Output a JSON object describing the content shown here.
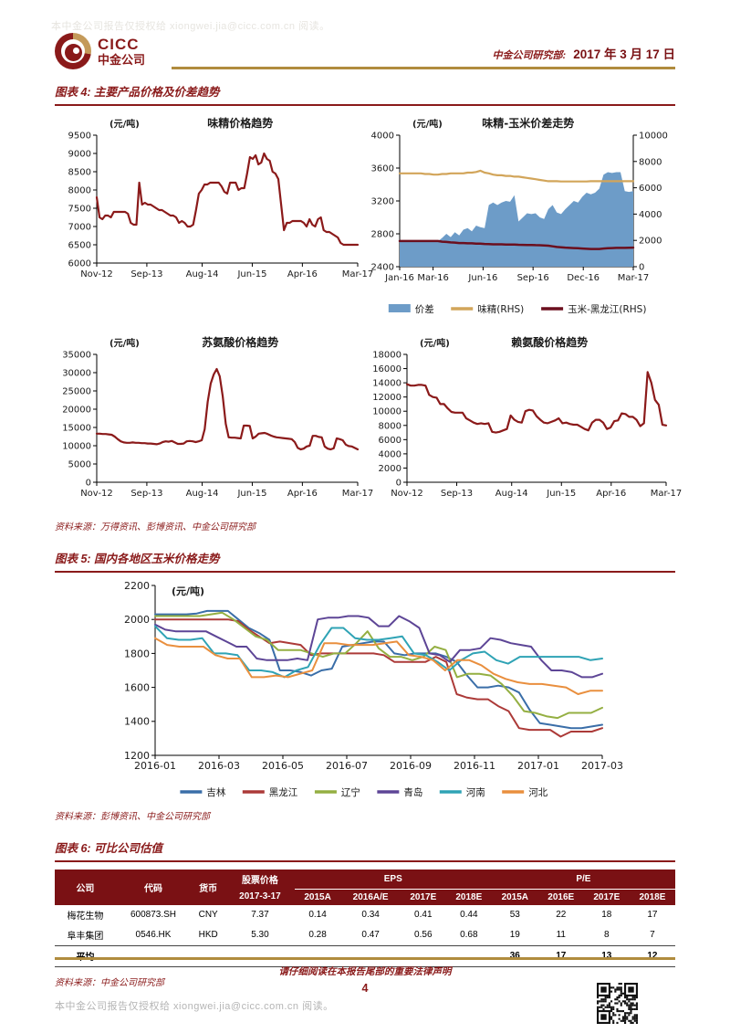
{
  "header": {
    "logo_text": "CICC",
    "logo_subtext": "中金公司",
    "dept": "中金公司研究部:",
    "date": "2017 年 3 月 17 日"
  },
  "watermark": {
    "auth_text": "本中金公司报告仅授权给 xiongwei.jia@cicc.com.cn 阅读。"
  },
  "figures": {
    "fig4": {
      "title": "图表 4: 主要产品价格及价差趋势",
      "source": "资料来源：万得资讯、彭博资讯、中金公司研究部"
    },
    "fig5": {
      "title": "图表 5: 国内各地区玉米价格走势",
      "source": "资料来源：彭博资讯、中金公司研究部"
    },
    "fig6": {
      "title": "图表 6: 可比公司估值",
      "source": "资料来源：中金公司研究部"
    }
  },
  "footer": {
    "legal": "请仔细阅读在本报告尾部的重要法律声明",
    "page_number": "4"
  },
  "chart_data": [
    {
      "id": "msg",
      "type": "line",
      "title": "味精价格趋势",
      "unit": "(元/吨)",
      "ylim": [
        6000,
        9500
      ],
      "ystep": 500,
      "xlabels": [
        "Nov-12",
        "Sep-13",
        "Aug-14",
        "Jun-15",
        "Apr-16",
        "Mar-17"
      ],
      "xfrac": [
        0,
        0.192,
        0.404,
        0.596,
        0.788,
        1
      ],
      "series": [
        {
          "name": "味精价格",
          "color": "#8b1a1a",
          "w": 2.2,
          "values": [
            7800,
            7250,
            7200,
            7300,
            7300,
            7250,
            7400,
            7400,
            7400,
            7400,
            7400,
            7350,
            7100,
            7050,
            7050,
            8200,
            7600,
            7650,
            7600,
            7600,
            7550,
            7500,
            7450,
            7450,
            7400,
            7350,
            7300,
            7300,
            7250,
            7100,
            7150,
            7100,
            7000,
            7000,
            7050,
            7450,
            7900,
            8000,
            8150,
            8150,
            8200,
            8200,
            8200,
            8200,
            8100,
            7950,
            7900,
            8200,
            8200,
            8200,
            8000,
            8050,
            8050,
            8450,
            8900,
            8850,
            8950,
            8700,
            8750,
            9000,
            8850,
            8800,
            8500,
            8450,
            8300,
            7600,
            6900,
            7100,
            7100,
            7150,
            7150,
            7150,
            7150,
            7100,
            7000,
            7200,
            7050,
            7000,
            7200,
            7250,
            6900,
            6850,
            6850,
            6800,
            6750,
            6700,
            6550,
            6500,
            6500,
            6500,
            6500,
            6500,
            6500
          ]
        }
      ]
    },
    {
      "id": "spread",
      "type": "area+line",
      "title": "味精-玉米价差走势",
      "unit": "(元/吨)",
      "ylim": [
        2400,
        4000
      ],
      "ystep": 400,
      "y2lim": [
        0,
        10000
      ],
      "y2step": 2000,
      "legend": true,
      "xlabels": [
        "Jan-16",
        "Mar-16",
        "Jun-16",
        "Sep-16",
        "Dec-16",
        "Mar-17"
      ],
      "xfrac": [
        0,
        0.143,
        0.357,
        0.571,
        0.786,
        1
      ],
      "series": [
        {
          "name": "价差",
          "kind": "area",
          "axis": "left",
          "color": "#6d9cc8",
          "values": [
            2700,
            2700,
            2700,
            2700,
            2700,
            2700,
            2700,
            2700,
            2700,
            2710,
            2750,
            2800,
            2760,
            2820,
            2780,
            2850,
            2870,
            2830,
            2900,
            2880,
            2870,
            3150,
            3180,
            3150,
            3180,
            3200,
            3190,
            3270,
            2950,
            3000,
            3050,
            3040,
            3050,
            3000,
            2980,
            3100,
            3150,
            3060,
            3040,
            3100,
            3150,
            3200,
            3180,
            3250,
            3300,
            3280,
            3300,
            3350,
            3520,
            3550,
            3540,
            3550,
            3550,
            3320,
            3310,
            3320
          ]
        },
        {
          "name": "味精(RHS)",
          "axis": "right",
          "color": "#d2a55a",
          "w": 2.2,
          "values": [
            7100,
            7100,
            7100,
            7100,
            7100,
            7100,
            7050,
            7050,
            7000,
            7000,
            7050,
            7050,
            7100,
            7100,
            7100,
            7100,
            7150,
            7150,
            7200,
            7300,
            7150,
            7100,
            7000,
            6950,
            6950,
            6900,
            6900,
            6850,
            6850,
            6800,
            6750,
            6700,
            6650,
            6600,
            6550,
            6500,
            6500,
            6500,
            6480,
            6480,
            6480,
            6480,
            6480,
            6480,
            6480,
            6500,
            6500,
            6500,
            6500,
            6500,
            6500,
            6500,
            6500,
            6500,
            6500,
            6500
          ]
        },
        {
          "name": "玉米-黑龙江(RHS)",
          "axis": "right",
          "color": "#6b0f1e",
          "w": 2.5,
          "values": [
            1950,
            1950,
            1950,
            1950,
            1950,
            1950,
            1950,
            1950,
            1950,
            1950,
            1900,
            1880,
            1850,
            1830,
            1800,
            1800,
            1780,
            1780,
            1750,
            1750,
            1730,
            1720,
            1700,
            1700,
            1700,
            1690,
            1680,
            1680,
            1670,
            1660,
            1650,
            1650,
            1640,
            1630,
            1620,
            1600,
            1550,
            1500,
            1480,
            1450,
            1430,
            1420,
            1400,
            1380,
            1360,
            1350,
            1350,
            1350,
            1380,
            1400,
            1420,
            1430,
            1430,
            1430,
            1440,
            1450
          ]
        }
      ]
    },
    {
      "id": "threonine",
      "type": "line",
      "title": "苏氨酸价格趋势",
      "unit": "(元/吨)",
      "ylim": [
        0,
        35000
      ],
      "ystep": 5000,
      "xlabels": [
        "Nov-12",
        "Sep-13",
        "Aug-14",
        "Jun-15",
        "Apr-16",
        "Mar-17"
      ],
      "xfrac": [
        0,
        0.192,
        0.404,
        0.596,
        0.788,
        1
      ],
      "series": [
        {
          "name": "苏氨酸价格",
          "color": "#8b1a1a",
          "w": 2.2,
          "values": [
            13300,
            13300,
            13200,
            13200,
            13100,
            13000,
            12500,
            11800,
            11200,
            10900,
            10800,
            10800,
            10900,
            10800,
            10800,
            10700,
            10700,
            10600,
            10600,
            10500,
            10400,
            10600,
            11000,
            11200,
            11100,
            11300,
            10900,
            10500,
            10500,
            10600,
            11200,
            11300,
            11200,
            11000,
            11200,
            11500,
            14500,
            22000,
            27000,
            29500,
            31000,
            29000,
            23500,
            16000,
            12300,
            12200,
            12200,
            12100,
            12000,
            15500,
            15500,
            15400,
            12000,
            12500,
            13300,
            13400,
            13500,
            13200,
            12800,
            12500,
            12300,
            12200,
            12100,
            12000,
            11900,
            11800,
            11000,
            9400,
            9000,
            9200,
            9800,
            10000,
            12700,
            12700,
            12400,
            12300,
            9800,
            9200,
            9000,
            9300,
            12000,
            11800,
            11500,
            10300,
            9900,
            9800,
            9400,
            9000
          ]
        }
      ]
    },
    {
      "id": "lysine",
      "type": "line",
      "title": "赖氨酸价格趋势",
      "unit": "(元/吨)",
      "ylim": [
        0,
        18000
      ],
      "ystep": 2000,
      "xlabels": [
        "Nov-12",
        "Sep-13",
        "Aug-14",
        "Jun-15",
        "Apr-16",
        "Mar-17"
      ],
      "xfrac": [
        0,
        0.192,
        0.404,
        0.596,
        0.788,
        1
      ],
      "series": [
        {
          "name": "赖氨酸价格",
          "color": "#8b1a1a",
          "w": 2.2,
          "values": [
            13800,
            13600,
            13600,
            13700,
            13700,
            13600,
            12300,
            12000,
            11900,
            11000,
            11000,
            10400,
            9900,
            9800,
            9800,
            9800,
            9000,
            8700,
            8400,
            8200,
            8300,
            8200,
            8300,
            7100,
            7000,
            7100,
            7300,
            7500,
            9400,
            8800,
            8500,
            8400,
            10000,
            10200,
            10100,
            9300,
            8800,
            8400,
            8300,
            8500,
            8700,
            9000,
            8300,
            8400,
            8200,
            8100,
            8100,
            7800,
            7500,
            7300,
            8400,
            8800,
            8800,
            8400,
            7500,
            7700,
            8600,
            8700,
            9700,
            9600,
            9200,
            9200,
            8800,
            7900,
            8300,
            15500,
            14000,
            11600,
            10900,
            8100,
            8000
          ]
        }
      ]
    },
    {
      "id": "corn",
      "type": "line",
      "title": "",
      "unit": "(元/吨)",
      "unit_inside": true,
      "ylim": [
        1200,
        2200
      ],
      "ystep": 200,
      "legend": true,
      "tick_font": 11,
      "xlabels": [
        "2016-01",
        "2016-03",
        "2016-05",
        "2016-07",
        "2016-09",
        "2016-11",
        "2017-01",
        "2017-03"
      ],
      "series": [
        {
          "name": "吉林",
          "color": "#3a6ea8",
          "w": 2,
          "values": [
            2030,
            2030,
            2030,
            2030,
            2035,
            2050,
            2050,
            2050,
            2000,
            1950,
            1920,
            1880,
            1700,
            1700,
            1690,
            1670,
            1700,
            1710,
            1840,
            1850,
            1860,
            1870,
            1870,
            1800,
            1790,
            1800,
            1800,
            1800,
            1780,
            1750,
            1670,
            1600,
            1600,
            1610,
            1600,
            1570,
            1470,
            1390,
            1380,
            1370,
            1360,
            1360,
            1370,
            1380
          ]
        },
        {
          "name": "黑龙江",
          "color": "#ac3a38",
          "w": 2,
          "values": [
            2000,
            2000,
            2000,
            2000,
            2000,
            2000,
            2000,
            2000,
            1990,
            1940,
            1900,
            1860,
            1870,
            1860,
            1850,
            1790,
            1800,
            1800,
            1800,
            1800,
            1800,
            1800,
            1790,
            1750,
            1750,
            1750,
            1750,
            1780,
            1750,
            1560,
            1540,
            1530,
            1530,
            1490,
            1460,
            1360,
            1350,
            1350,
            1350,
            1310,
            1340,
            1340,
            1340,
            1360
          ]
        },
        {
          "name": "辽宁",
          "color": "#94af42",
          "w": 2,
          "values": [
            2020,
            2020,
            2020,
            2020,
            2020,
            2030,
            2040,
            2000,
            1950,
            1900,
            1880,
            1820,
            1820,
            1820,
            1800,
            1780,
            1800,
            1800,
            1860,
            1930,
            1830,
            1780,
            1780,
            1760,
            1780,
            1840,
            1820,
            1660,
            1680,
            1680,
            1670,
            1620,
            1550,
            1460,
            1450,
            1430,
            1420,
            1450,
            1450,
            1450,
            1480
          ]
        },
        {
          "name": "青岛",
          "color": "#5d4596",
          "w": 2,
          "values": [
            1970,
            1940,
            1930,
            1930,
            1930,
            1930,
            1900,
            1870,
            1840,
            1840,
            1770,
            1760,
            1760,
            1760,
            1770,
            1760,
            2000,
            2010,
            2010,
            2020,
            2020,
            2010,
            1960,
            1960,
            2020,
            1990,
            1950,
            1800,
            1790,
            1750,
            1820,
            1820,
            1830,
            1890,
            1880,
            1860,
            1850,
            1840,
            1760,
            1700,
            1700,
            1690,
            1660,
            1660,
            1680
          ]
        },
        {
          "name": "河南",
          "color": "#2fa3b5",
          "w": 2,
          "values": [
            1960,
            1890,
            1880,
            1880,
            1890,
            1800,
            1800,
            1790,
            1700,
            1700,
            1690,
            1660,
            1700,
            1720,
            1850,
            1950,
            1950,
            1890,
            1880,
            1880,
            1890,
            1900,
            1800,
            1790,
            1750,
            1700,
            1760,
            1800,
            1810,
            1760,
            1740,
            1780,
            1780,
            1780,
            1780,
            1780,
            1780,
            1760,
            1770
          ]
        },
        {
          "name": "河北",
          "color": "#e98f3e",
          "w": 2,
          "values": [
            1890,
            1850,
            1840,
            1840,
            1840,
            1790,
            1770,
            1770,
            1660,
            1660,
            1670,
            1660,
            1680,
            1700,
            1860,
            1860,
            1850,
            1850,
            1850,
            1860,
            1870,
            1790,
            1780,
            1760,
            1700,
            1760,
            1760,
            1730,
            1680,
            1650,
            1630,
            1620,
            1620,
            1610,
            1600,
            1560,
            1580,
            1580
          ]
        }
      ]
    }
  ],
  "table": {
    "groups": {
      "price": "股票价格",
      "eps": "EPS",
      "pe": "P/E"
    },
    "headers": {
      "company": "公司",
      "code": "代码",
      "currency": "货币",
      "price_date": "2017-3-17",
      "eps_cols": [
        "2015A",
        "2016A/E",
        "2017E",
        "2018E"
      ],
      "pe_cols": [
        "2015A",
        "2016E",
        "2017E",
        "2018E"
      ]
    },
    "rows": [
      {
        "bold": false,
        "cells": [
          "梅花生物",
          "600873.SH",
          "CNY",
          "7.37",
          "0.14",
          "0.34",
          "0.41",
          "0.44",
          "53",
          "22",
          "18",
          "17"
        ]
      },
      {
        "bold": false,
        "cells": [
          "阜丰集团",
          "0546.HK",
          "HKD",
          "5.30",
          "0.28",
          "0.47",
          "0.56",
          "0.68",
          "19",
          "11",
          "8",
          "7"
        ]
      },
      {
        "bold": true,
        "cells": [
          "平均",
          "",
          "",
          "",
          "",
          "",
          "",
          "",
          "36",
          "17",
          "13",
          "12"
        ]
      }
    ]
  }
}
